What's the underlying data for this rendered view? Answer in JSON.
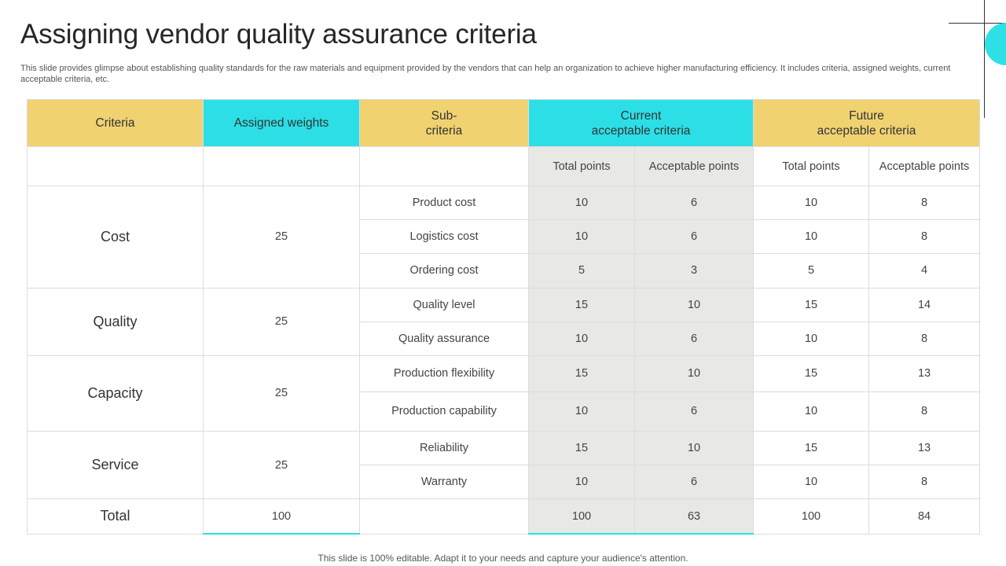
{
  "title": "Assigning vendor quality assurance criteria",
  "subtitle": "This slide provides glimpse about establishing quality standards for the raw materials and equipment provided by the vendors that can help an organization to achieve higher manufacturing efficiency. It includes criteria, assigned weights, current acceptable criteria, etc.",
  "colors": {
    "yellow": "#f0d271",
    "cyan": "#2cdfe6",
    "grey": "#e8e8e4"
  },
  "table": {
    "headers": {
      "criteria": "Criteria",
      "weights": "Assigned weights",
      "sub_line1": "Sub-",
      "sub_line2": "criteria",
      "current_line1": "Current",
      "current_line2": "acceptable criteria",
      "future_line1": "Future",
      "future_line2": "acceptable criteria"
    },
    "subheaders": {
      "current_total": "Total points",
      "current_acceptable": "Acceptable points",
      "future_total": "Total points",
      "future_acceptable": "Acceptable points"
    },
    "groups": [
      {
        "name": "Cost",
        "weight": "25",
        "rows": [
          {
            "sub": "Product cost",
            "cur_total": "10",
            "cur_accept": "6",
            "fut_total": "10",
            "fut_accept": "8"
          },
          {
            "sub": "Logistics cost",
            "cur_total": "10",
            "cur_accept": "6",
            "fut_total": "10",
            "fut_accept": "8"
          },
          {
            "sub": "Ordering cost",
            "cur_total": "5",
            "cur_accept": "3",
            "fut_total": "5",
            "fut_accept": "4"
          }
        ]
      },
      {
        "name": "Quality",
        "weight": "25",
        "rows": [
          {
            "sub": "Quality level",
            "cur_total": "15",
            "cur_accept": "10",
            "fut_total": "15",
            "fut_accept": "14"
          },
          {
            "sub": "Quality assurance",
            "cur_total": "10",
            "cur_accept": "6",
            "fut_total": "10",
            "fut_accept": "8"
          }
        ]
      },
      {
        "name": "Capacity",
        "weight": "25",
        "rows": [
          {
            "sub": "Production flexibility",
            "cur_total": "15",
            "cur_accept": "10",
            "fut_total": "15",
            "fut_accept": "13"
          },
          {
            "sub": "Production capability",
            "cur_total": "10",
            "cur_accept": "6",
            "fut_total": "10",
            "fut_accept": "8"
          }
        ]
      },
      {
        "name": "Service",
        "weight": "25",
        "rows": [
          {
            "sub": "Reliability",
            "cur_total": "15",
            "cur_accept": "10",
            "fut_total": "15",
            "fut_accept": "13"
          },
          {
            "sub": "Warranty",
            "cur_total": "10",
            "cur_accept": "6",
            "fut_total": "10",
            "fut_accept": "8"
          }
        ]
      }
    ],
    "total": {
      "label": "Total",
      "weight": "100",
      "cur_total": "100",
      "cur_accept": "63",
      "fut_total": "100",
      "fut_accept": "84"
    }
  },
  "footer": "This slide is 100% editable. Adapt it to your needs and capture your audience's attention."
}
